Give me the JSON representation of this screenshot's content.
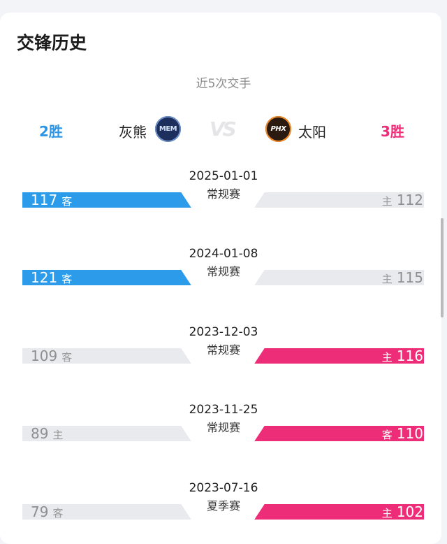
{
  "title": "交锋历史",
  "subtitle": "近5次交手",
  "home_team": {
    "wins": "2胜",
    "name": "灰熊",
    "logo_text": "MEM",
    "logo_icon": "grizzlies-logo-icon"
  },
  "away_team": {
    "wins": "3胜",
    "name": "太阳",
    "logo_text": "PHX",
    "logo_icon": "suns-logo-icon"
  },
  "vs_label": "VS",
  "colors": {
    "grizzlies": "#2c9be9",
    "suns": "#ee2d78",
    "neutral": "#e9eaed"
  },
  "games": [
    {
      "date": "2025-01-01",
      "type": "常规赛",
      "left_score": "117",
      "left_tag": "客",
      "right_score": "112",
      "right_tag": "主",
      "winner": "left"
    },
    {
      "date": "2024-01-08",
      "type": "常规赛",
      "left_score": "121",
      "left_tag": "客",
      "right_score": "115",
      "right_tag": "主",
      "winner": "left"
    },
    {
      "date": "2023-12-03",
      "type": "常规赛",
      "left_score": "109",
      "left_tag": "客",
      "right_score": "116",
      "right_tag": "主",
      "winner": "right"
    },
    {
      "date": "2023-11-25",
      "type": "常规赛",
      "left_score": "89",
      "left_tag": "主",
      "right_score": "110",
      "right_tag": "客",
      "winner": "right"
    },
    {
      "date": "2023-07-16",
      "type": "夏季赛",
      "left_score": "79",
      "left_tag": "客",
      "right_score": "102",
      "right_tag": "主",
      "winner": "right"
    }
  ]
}
